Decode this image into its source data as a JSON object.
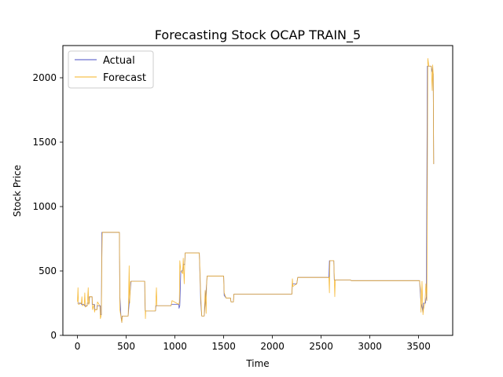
{
  "chart_data": {
    "type": "line",
    "title": "Forecasting Stock OCAP TRAIN_5",
    "xlabel": "Time",
    "ylabel": "Stock Price",
    "xlim": [
      -150,
      3850
    ],
    "ylim": [
      0,
      2250
    ],
    "xticks": [
      0,
      500,
      1000,
      1500,
      2000,
      2500,
      3000,
      3500
    ],
    "yticks": [
      0,
      500,
      1000,
      1500,
      2000
    ],
    "grid": false,
    "legend_position": "top-left",
    "series": [
      {
        "name": "Actual",
        "color": "#4a4fc6",
        "points": [
          [
            0,
            250
          ],
          [
            40,
            250
          ],
          [
            41,
            240
          ],
          [
            70,
            240
          ],
          [
            71,
            230
          ],
          [
            100,
            230
          ],
          [
            101,
            250
          ],
          [
            120,
            250
          ],
          [
            121,
            300
          ],
          [
            150,
            300
          ],
          [
            151,
            240
          ],
          [
            175,
            240
          ],
          [
            176,
            200
          ],
          [
            200,
            200
          ],
          [
            201,
            230
          ],
          [
            235,
            230
          ],
          [
            236,
            160
          ],
          [
            245,
            160
          ],
          [
            250,
            800
          ],
          [
            430,
            800
          ],
          [
            435,
            300
          ],
          [
            445,
            160
          ],
          [
            455,
            100
          ],
          [
            458,
            150
          ],
          [
            520,
            150
          ],
          [
            525,
            200
          ],
          [
            535,
            300
          ],
          [
            550,
            420
          ],
          [
            690,
            420
          ],
          [
            692,
            250
          ],
          [
            695,
            190
          ],
          [
            800,
            190
          ],
          [
            805,
            230
          ],
          [
            960,
            230
          ],
          [
            962,
            240
          ],
          [
            1040,
            240
          ],
          [
            1042,
            210
          ],
          [
            1050,
            230
          ],
          [
            1060,
            500
          ],
          [
            1080,
            500
          ],
          [
            1085,
            550
          ],
          [
            1100,
            550
          ],
          [
            1105,
            640
          ],
          [
            1250,
            640
          ],
          [
            1265,
            250
          ],
          [
            1275,
            150
          ],
          [
            1300,
            150
          ],
          [
            1310,
            250
          ],
          [
            1320,
            350
          ],
          [
            1330,
            460
          ],
          [
            1500,
            460
          ],
          [
            1505,
            310
          ],
          [
            1525,
            290
          ],
          [
            1570,
            290
          ],
          [
            1575,
            260
          ],
          [
            1600,
            260
          ],
          [
            1605,
            320
          ],
          [
            2200,
            320
          ],
          [
            2205,
            400
          ],
          [
            2250,
            400
          ],
          [
            2260,
            450
          ],
          [
            2580,
            450
          ],
          [
            2585,
            580
          ],
          [
            2630,
            580
          ],
          [
            2635,
            430
          ],
          [
            2800,
            430
          ],
          [
            2810,
            425
          ],
          [
            3510,
            425
          ],
          [
            3520,
            300
          ],
          [
            3525,
            260
          ],
          [
            3540,
            200
          ],
          [
            3545,
            180
          ],
          [
            3550,
            250
          ],
          [
            3570,
            250
          ],
          [
            3580,
            300
          ],
          [
            3590,
            2090
          ],
          [
            3630,
            2090
          ],
          [
            3640,
            2050
          ],
          [
            3650,
            2030
          ],
          [
            3655,
            1330
          ]
        ]
      },
      {
        "name": "Forecast",
        "color": "#f5b323",
        "points": [
          [
            0,
            260
          ],
          [
            5,
            370
          ],
          [
            10,
            240
          ],
          [
            40,
            250
          ],
          [
            45,
            300
          ],
          [
            50,
            230
          ],
          [
            70,
            240
          ],
          [
            75,
            330
          ],
          [
            80,
            220
          ],
          [
            100,
            230
          ],
          [
            110,
            370
          ],
          [
            115,
            240
          ],
          [
            120,
            250
          ],
          [
            125,
            300
          ],
          [
            150,
            300
          ],
          [
            155,
            200
          ],
          [
            170,
            240
          ],
          [
            175,
            180
          ],
          [
            180,
            200
          ],
          [
            200,
            200
          ],
          [
            205,
            260
          ],
          [
            230,
            230
          ],
          [
            235,
            130
          ],
          [
            245,
            160
          ],
          [
            250,
            600
          ],
          [
            255,
            800
          ],
          [
            430,
            800
          ],
          [
            435,
            200
          ],
          [
            445,
            150
          ],
          [
            455,
            100
          ],
          [
            460,
            150
          ],
          [
            520,
            150
          ],
          [
            525,
            300
          ],
          [
            530,
            540
          ],
          [
            535,
            250
          ],
          [
            545,
            420
          ],
          [
            690,
            420
          ],
          [
            693,
            280
          ],
          [
            697,
            130
          ],
          [
            700,
            190
          ],
          [
            800,
            190
          ],
          [
            810,
            370
          ],
          [
            815,
            230
          ],
          [
            960,
            230
          ],
          [
            970,
            270
          ],
          [
            1040,
            240
          ],
          [
            1045,
            260
          ],
          [
            1050,
            580
          ],
          [
            1060,
            500
          ],
          [
            1080,
            480
          ],
          [
            1085,
            600
          ],
          [
            1095,
            400
          ],
          [
            1100,
            550
          ],
          [
            1105,
            640
          ],
          [
            1250,
            640
          ],
          [
            1265,
            300
          ],
          [
            1275,
            150
          ],
          [
            1300,
            150
          ],
          [
            1310,
            350
          ],
          [
            1320,
            170
          ],
          [
            1325,
            400
          ],
          [
            1330,
            460
          ],
          [
            1500,
            460
          ],
          [
            1505,
            330
          ],
          [
            1525,
            290
          ],
          [
            1570,
            290
          ],
          [
            1575,
            260
          ],
          [
            1600,
            260
          ],
          [
            1605,
            320
          ],
          [
            2200,
            320
          ],
          [
            2205,
            440
          ],
          [
            2210,
            380
          ],
          [
            2250,
            400
          ],
          [
            2260,
            450
          ],
          [
            2580,
            450
          ],
          [
            2585,
            330
          ],
          [
            2590,
            580
          ],
          [
            2630,
            580
          ],
          [
            2640,
            300
          ],
          [
            2645,
            430
          ],
          [
            2800,
            430
          ],
          [
            2810,
            425
          ],
          [
            3510,
            425
          ],
          [
            3520,
            350
          ],
          [
            3525,
            180
          ],
          [
            3535,
            420
          ],
          [
            3545,
            160
          ],
          [
            3550,
            200
          ],
          [
            3565,
            250
          ],
          [
            3575,
            400
          ],
          [
            3585,
            270
          ],
          [
            3595,
            2150
          ],
          [
            3605,
            2090
          ],
          [
            3630,
            2090
          ],
          [
            3640,
            1900
          ],
          [
            3645,
            2100
          ],
          [
            3650,
            2030
          ],
          [
            3655,
            1330
          ]
        ]
      }
    ]
  }
}
